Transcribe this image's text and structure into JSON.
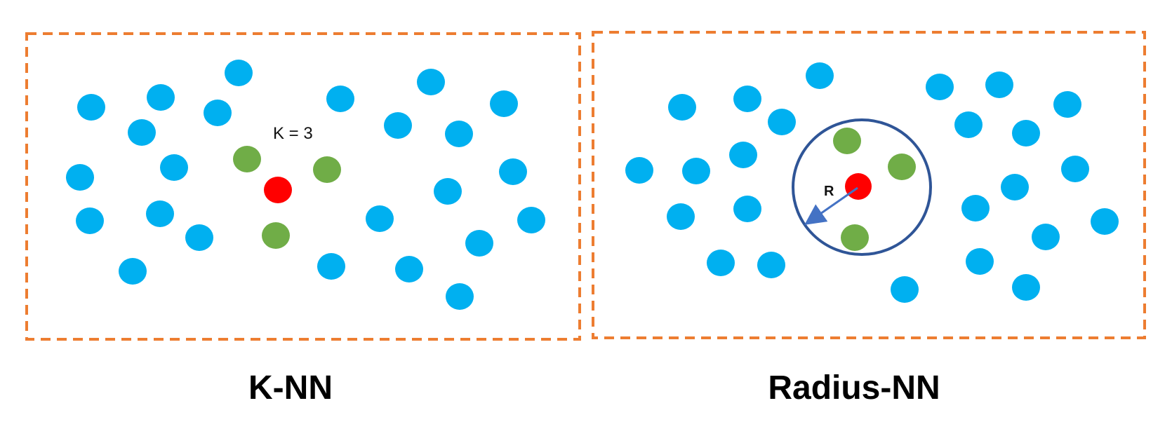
{
  "colors": {
    "frame": "#ED7D31",
    "neighbor_point": "#00B0F0",
    "selected_neighbor": "#70AD47",
    "query_point": "#FF0000",
    "radius_circle": "#2F5597",
    "radius_arrow": "#4472C4"
  },
  "knn": {
    "k_label": "K = 3",
    "caption": "K-NN"
  },
  "radius": {
    "r_label": "R",
    "caption": "Radius-NN"
  }
}
